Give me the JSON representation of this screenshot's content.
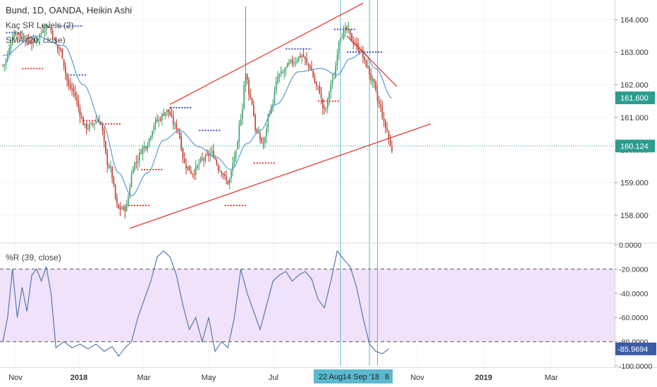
{
  "header": {
    "symbol": "Bund, 1D, OANDA, Heikin Ashi",
    "indicator1": "Kaç SR Levels (2)",
    "indicator2": "SMA (20, close)"
  },
  "colors": {
    "up": "#3d9f67",
    "down": "#c0392b",
    "trend": "#e53935",
    "sma": "#5b9bd5",
    "wr_line": "#4a6fa5",
    "wr_band": "#f0e2fb",
    "vline": "#5bb9cf",
    "support_dash": "#e53935",
    "resist_dash": "#3f51b5",
    "price_label_bg": "#2a9d8f",
    "last_label_bg": "#2a9d8f",
    "wr_label_bg": "#3b5ba7",
    "date_label_bg": "#5bb9cf"
  },
  "chart_data": [
    {
      "type": "candlestick",
      "title": "Bund, 1D, OANDA, Heikin Ashi",
      "x_axis": {
        "labels": [
          "Nov",
          "2018",
          "Mar",
          "May",
          "Jul",
          "Sep",
          "Nov",
          "2019",
          "Mar"
        ],
        "highlighted": [
          "22 Aug",
          "14 Sep '18",
          "8"
        ]
      },
      "y_axis": {
        "ylim": [
          157.2,
          164.6
        ],
        "ticks": [
          "158.000",
          "159.000",
          "160.000",
          "161.000",
          "162.000",
          "163.000",
          "164.000"
        ],
        "ticks_values": [
          158,
          159,
          160,
          161,
          162,
          163,
          164
        ]
      },
      "price_labels": [
        {
          "value": 161.6,
          "text": "161.600"
        },
        {
          "value": 160.124,
          "text": "160.124"
        }
      ],
      "last_price": 160.124,
      "series": [
        {
          "name": "Bund",
          "anchors": [
            {
              "x": 0,
              "y": 162.6
            },
            {
              "x": 8,
              "y": 163.6
            },
            {
              "x": 18,
              "y": 163.3
            },
            {
              "x": 28,
              "y": 163.8
            },
            {
              "x": 35,
              "y": 163.1
            },
            {
              "x": 42,
              "y": 161.9
            },
            {
              "x": 52,
              "y": 160.7
            },
            {
              "x": 60,
              "y": 160.9
            },
            {
              "x": 66,
              "y": 159.5
            },
            {
              "x": 72,
              "y": 158.2
            },
            {
              "x": 76,
              "y": 158.2
            },
            {
              "x": 82,
              "y": 159.6
            },
            {
              "x": 88,
              "y": 160.1
            },
            {
              "x": 96,
              "y": 160.9
            },
            {
              "x": 102,
              "y": 161.2
            },
            {
              "x": 108,
              "y": 160.7
            },
            {
              "x": 114,
              "y": 159.5
            },
            {
              "x": 118,
              "y": 159.3
            },
            {
              "x": 124,
              "y": 159.7
            },
            {
              "x": 130,
              "y": 159.9
            },
            {
              "x": 135,
              "y": 159.4
            },
            {
              "x": 140,
              "y": 159.0
            },
            {
              "x": 145,
              "y": 159.9
            },
            {
              "x": 148,
              "y": 161.0
            },
            {
              "x": 151,
              "y": 162.3
            },
            {
              "x": 154,
              "y": 161.6
            },
            {
              "x": 158,
              "y": 160.5
            },
            {
              "x": 162,
              "y": 160.2
            },
            {
              "x": 166,
              "y": 161.2
            },
            {
              "x": 172,
              "y": 162.3
            },
            {
              "x": 180,
              "y": 162.7
            },
            {
              "x": 186,
              "y": 162.9
            },
            {
              "x": 190,
              "y": 162.6
            },
            {
              "x": 196,
              "y": 161.9
            },
            {
              "x": 200,
              "y": 161.2
            },
            {
              "x": 205,
              "y": 162.1
            },
            {
              "x": 210,
              "y": 163.5
            },
            {
              "x": 214,
              "y": 163.7
            },
            {
              "x": 218,
              "y": 163.3
            },
            {
              "x": 222,
              "y": 163.1
            },
            {
              "x": 226,
              "y": 162.6
            },
            {
              "x": 230,
              "y": 162.1
            },
            {
              "x": 234,
              "y": 161.4
            },
            {
              "x": 238,
              "y": 160.7
            },
            {
              "x": 242,
              "y": 160.0
            }
          ]
        }
      ],
      "sma": {
        "name": "SMA (20, close)",
        "anchors": [
          {
            "x": 0,
            "y": 162.9
          },
          {
            "x": 20,
            "y": 163.5
          },
          {
            "x": 38,
            "y": 163.2
          },
          {
            "x": 50,
            "y": 162.0
          },
          {
            "x": 62,
            "y": 160.8
          },
          {
            "x": 72,
            "y": 159.3
          },
          {
            "x": 80,
            "y": 158.6
          },
          {
            "x": 90,
            "y": 159.3
          },
          {
            "x": 100,
            "y": 160.3
          },
          {
            "x": 110,
            "y": 160.6
          },
          {
            "x": 122,
            "y": 160.1
          },
          {
            "x": 132,
            "y": 159.8
          },
          {
            "x": 142,
            "y": 159.4
          },
          {
            "x": 152,
            "y": 160.2
          },
          {
            "x": 160,
            "y": 160.6
          },
          {
            "x": 170,
            "y": 161.4
          },
          {
            "x": 184,
            "y": 162.4
          },
          {
            "x": 198,
            "y": 162.5
          },
          {
            "x": 208,
            "y": 162.3
          },
          {
            "x": 216,
            "y": 162.8
          },
          {
            "x": 224,
            "y": 163.0
          },
          {
            "x": 232,
            "y": 162.5
          },
          {
            "x": 242,
            "y": 161.6
          }
        ]
      },
      "trendlines": [
        {
          "x1": 79,
          "y1": 157.6,
          "x2": 266,
          "y2": 160.8
        },
        {
          "x1": 104,
          "y1": 161.4,
          "x2": 224,
          "y2": 164.5
        },
        {
          "x1": 214,
          "y1": 163.5,
          "x2": 245,
          "y2": 161.95
        }
      ],
      "vlines": [
        210,
        228,
        233
      ],
      "sr_levels": [
        {
          "x1": 2,
          "x2": 12,
          "y": 163.6,
          "kind": "resist"
        },
        {
          "x1": 12,
          "x2": 26,
          "y": 162.5,
          "kind": "support"
        },
        {
          "x1": 34,
          "x2": 50,
          "y": 163.8,
          "kind": "resist"
        },
        {
          "x1": 42,
          "x2": 52,
          "y": 162.3,
          "kind": "resist"
        },
        {
          "x1": 50,
          "x2": 60,
          "y": 160.9,
          "kind": "support"
        },
        {
          "x1": 60,
          "x2": 74,
          "y": 160.8,
          "kind": "support"
        },
        {
          "x1": 78,
          "x2": 92,
          "y": 158.3,
          "kind": "support"
        },
        {
          "x1": 86,
          "x2": 100,
          "y": 159.4,
          "kind": "support"
        },
        {
          "x1": 104,
          "x2": 118,
          "y": 161.3,
          "kind": "resist"
        },
        {
          "x1": 122,
          "x2": 136,
          "y": 160.6,
          "kind": "resist"
        },
        {
          "x1": 138,
          "x2": 152,
          "y": 158.3,
          "kind": "support"
        },
        {
          "x1": 156,
          "x2": 170,
          "y": 159.6,
          "kind": "support"
        },
        {
          "x1": 176,
          "x2": 192,
          "y": 163.1,
          "kind": "resist"
        },
        {
          "x1": 196,
          "x2": 210,
          "y": 161.5,
          "kind": "support"
        },
        {
          "x1": 206,
          "x2": 220,
          "y": 163.7,
          "kind": "resist"
        },
        {
          "x1": 214,
          "x2": 236,
          "y": 163.0,
          "kind": "resist"
        }
      ]
    },
    {
      "type": "line",
      "title": "%R (39, close)",
      "y_axis": {
        "ylim": [
          -100,
          0
        ],
        "ticks": [
          "0.0000",
          "-20.0000",
          "-40.0000",
          "-60.0000",
          "-80.0000",
          "-100.0000"
        ],
        "ticks_values": [
          0,
          -20,
          -40,
          -60,
          -80,
          -100
        ]
      },
      "band": {
        "upper": -20,
        "lower": -80
      },
      "last_value": -85.9694,
      "last_label": "-85.9694",
      "series": [
        {
          "name": "%R (39, close)",
          "points": [
            {
              "x": 0,
              "y": -80
            },
            {
              "x": 3,
              "y": -60
            },
            {
              "x": 6,
              "y": -20
            },
            {
              "x": 9,
              "y": -60
            },
            {
              "x": 12,
              "y": -35
            },
            {
              "x": 15,
              "y": -55
            },
            {
              "x": 18,
              "y": -25
            },
            {
              "x": 21,
              "y": -20
            },
            {
              "x": 24,
              "y": -30
            },
            {
              "x": 27,
              "y": -18
            },
            {
              "x": 30,
              "y": -40
            },
            {
              "x": 33,
              "y": -85
            },
            {
              "x": 38,
              "y": -80
            },
            {
              "x": 43,
              "y": -85
            },
            {
              "x": 48,
              "y": -82
            },
            {
              "x": 53,
              "y": -86
            },
            {
              "x": 58,
              "y": -82
            },
            {
              "x": 63,
              "y": -88
            },
            {
              "x": 68,
              "y": -84
            },
            {
              "x": 72,
              "y": -92
            },
            {
              "x": 76,
              "y": -85
            },
            {
              "x": 80,
              "y": -80
            },
            {
              "x": 84,
              "y": -60
            },
            {
              "x": 88,
              "y": -45
            },
            {
              "x": 92,
              "y": -30
            },
            {
              "x": 96,
              "y": -10
            },
            {
              "x": 100,
              "y": -5
            },
            {
              "x": 104,
              "y": -10
            },
            {
              "x": 108,
              "y": -25
            },
            {
              "x": 112,
              "y": -50
            },
            {
              "x": 116,
              "y": -70
            },
            {
              "x": 120,
              "y": -60
            },
            {
              "x": 124,
              "y": -80
            },
            {
              "x": 128,
              "y": -60
            },
            {
              "x": 132,
              "y": -88
            },
            {
              "x": 136,
              "y": -80
            },
            {
              "x": 140,
              "y": -85
            },
            {
              "x": 144,
              "y": -60
            },
            {
              "x": 148,
              "y": -20
            },
            {
              "x": 152,
              "y": -40
            },
            {
              "x": 156,
              "y": -55
            },
            {
              "x": 160,
              "y": -70
            },
            {
              "x": 164,
              "y": -50
            },
            {
              "x": 168,
              "y": -30
            },
            {
              "x": 172,
              "y": -25
            },
            {
              "x": 176,
              "y": -22
            },
            {
              "x": 180,
              "y": -30
            },
            {
              "x": 184,
              "y": -25
            },
            {
              "x": 188,
              "y": -22
            },
            {
              "x": 192,
              "y": -28
            },
            {
              "x": 196,
              "y": -45
            },
            {
              "x": 200,
              "y": -52
            },
            {
              "x": 204,
              "y": -30
            },
            {
              "x": 208,
              "y": -5
            },
            {
              "x": 212,
              "y": -12
            },
            {
              "x": 216,
              "y": -18
            },
            {
              "x": 220,
              "y": -35
            },
            {
              "x": 224,
              "y": -60
            },
            {
              "x": 228,
              "y": -82
            },
            {
              "x": 232,
              "y": -88
            },
            {
              "x": 236,
              "y": -90
            },
            {
              "x": 240,
              "y": -86
            }
          ]
        }
      ]
    }
  ]
}
